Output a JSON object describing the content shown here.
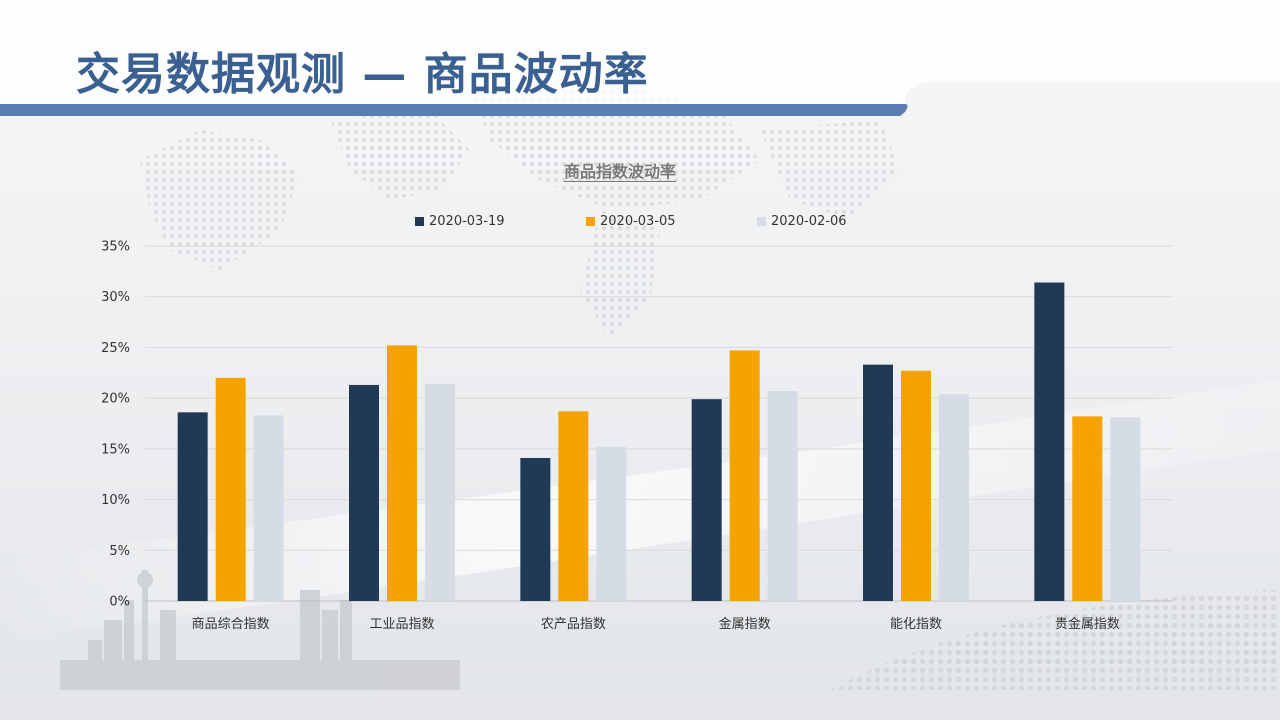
{
  "page": {
    "title": "交易数据观测 — 商品波动率"
  },
  "colors": {
    "title": "#3a5f91",
    "band": "#5a7db1",
    "series": [
      "#203a55",
      "#f5a300",
      "#d6dce5"
    ]
  },
  "chart_data": {
    "type": "bar",
    "title": "商品指数波动率",
    "categories": [
      "商品综合指数",
      "工业品指数",
      "农产品指数",
      "金属指数",
      "能化指数",
      "贵金属指数"
    ],
    "series": [
      {
        "name": "2020-03-19",
        "values": [
          18.6,
          21.3,
          14.1,
          19.9,
          23.3,
          31.4
        ]
      },
      {
        "name": "2020-03-05",
        "values": [
          22.0,
          25.2,
          18.7,
          24.7,
          22.7,
          18.2
        ]
      },
      {
        "name": "2020-02-06",
        "values": [
          18.3,
          21.4,
          15.2,
          20.7,
          20.4,
          18.1
        ]
      }
    ],
    "y_ticks": [
      "0%",
      "5%",
      "10%",
      "15%",
      "20%",
      "25%",
      "30%",
      "35%"
    ],
    "ylim": [
      0,
      35
    ],
    "y_unit": "%",
    "grid": true,
    "legend_position": "top"
  }
}
